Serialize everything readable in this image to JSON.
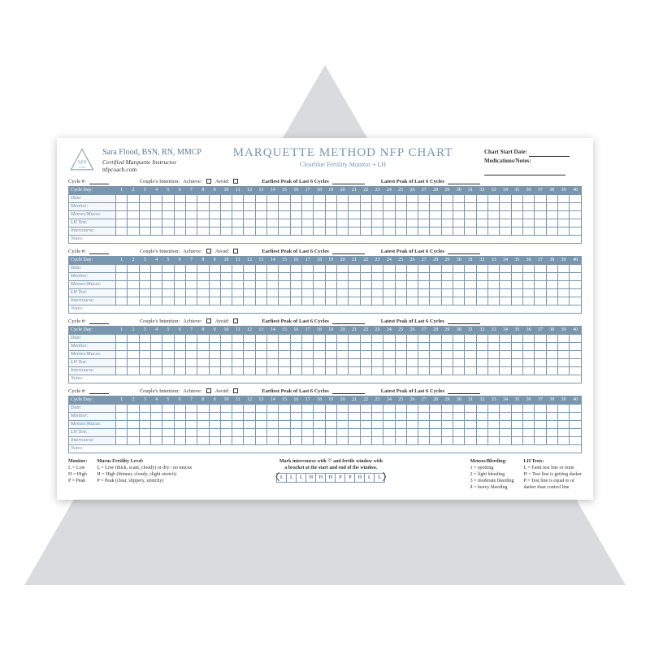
{
  "header": {
    "instructor_name": "Sara Flood, BSN, RN, MMCP",
    "instructor_cred": "Certified Marquette Instructor",
    "instructor_site": "nfpcoach.com",
    "title": "MARQUETTE METHOD NFP CHART",
    "subtitle": "Clearblue Fertility Monitor + LH",
    "meta1_label": "Chart Start Date:",
    "meta2_label": "Medications/Notes:"
  },
  "cycle_meta": {
    "cycle_num_label": "Cycle #:",
    "intention_label": "Couple's Intention:",
    "achieve_label": "Achieve:",
    "avoid_label": "Avoid:",
    "earliest_label": "Earliest Peak of Last 6 Cycles",
    "latest_label": "Latest Peak of Last 6 Cycles"
  },
  "row_labels": {
    "cycle_day": "Cycle Day:",
    "date": "Date:",
    "monitor": "Monitor:",
    "menses": "Menses/Mucus:",
    "lh": "LH Test:",
    "intercourse": "Intercourse:",
    "notes": "Notes:"
  },
  "days": [
    "1",
    "2",
    "3",
    "4",
    "5",
    "6",
    "7",
    "8",
    "9",
    "10",
    "11",
    "12",
    "13",
    "14",
    "15",
    "16",
    "17",
    "18",
    "19",
    "20",
    "21",
    "22",
    "23",
    "24",
    "25",
    "26",
    "27",
    "28",
    "29",
    "30",
    "31",
    "32",
    "33",
    "34",
    "35",
    "36",
    "37",
    "38",
    "39",
    "40"
  ],
  "legend": {
    "monitor_title": "Monitor:",
    "monitor_l": "L = Low",
    "monitor_h": "H = High",
    "monitor_p": "P = Peak",
    "mucus_title": "Mucus Fertility Level:",
    "mucus_l": "L = Low (thick, scant, cloudy) or dry / no mucus",
    "mucus_h": "H = High (thinner, cloudy, slight stretch)",
    "mucus_p": "P = Peak (clear, slippery, stretchy)",
    "center_line1": "Mark intercourse with ♡ and fertile window with",
    "center_line2": "a bracket at the start and end of the window.",
    "example": [
      "L",
      "L",
      "L",
      "H",
      "H",
      "H",
      "P",
      "P",
      "H",
      "L",
      "L"
    ],
    "menses_title": "Menses/Bleeding:",
    "menses_1": "1 = spotting",
    "menses_2": "2 = light bleeding",
    "menses_3": "3 = moderate bleeding",
    "menses_4": "4 = heavy bleeding",
    "lh_title": "LH Tests:",
    "lh_l": "L = Faint test line or none",
    "lh_h": "H = Test line is getting darker",
    "lh_p": "P = Test line is equal to or",
    "lh_p2": "darker than control line"
  },
  "colors": {
    "triangle": "#d9dbde",
    "accent": "#7a96ae",
    "accent_light": "#f5f8fa",
    "text": "#333333"
  }
}
